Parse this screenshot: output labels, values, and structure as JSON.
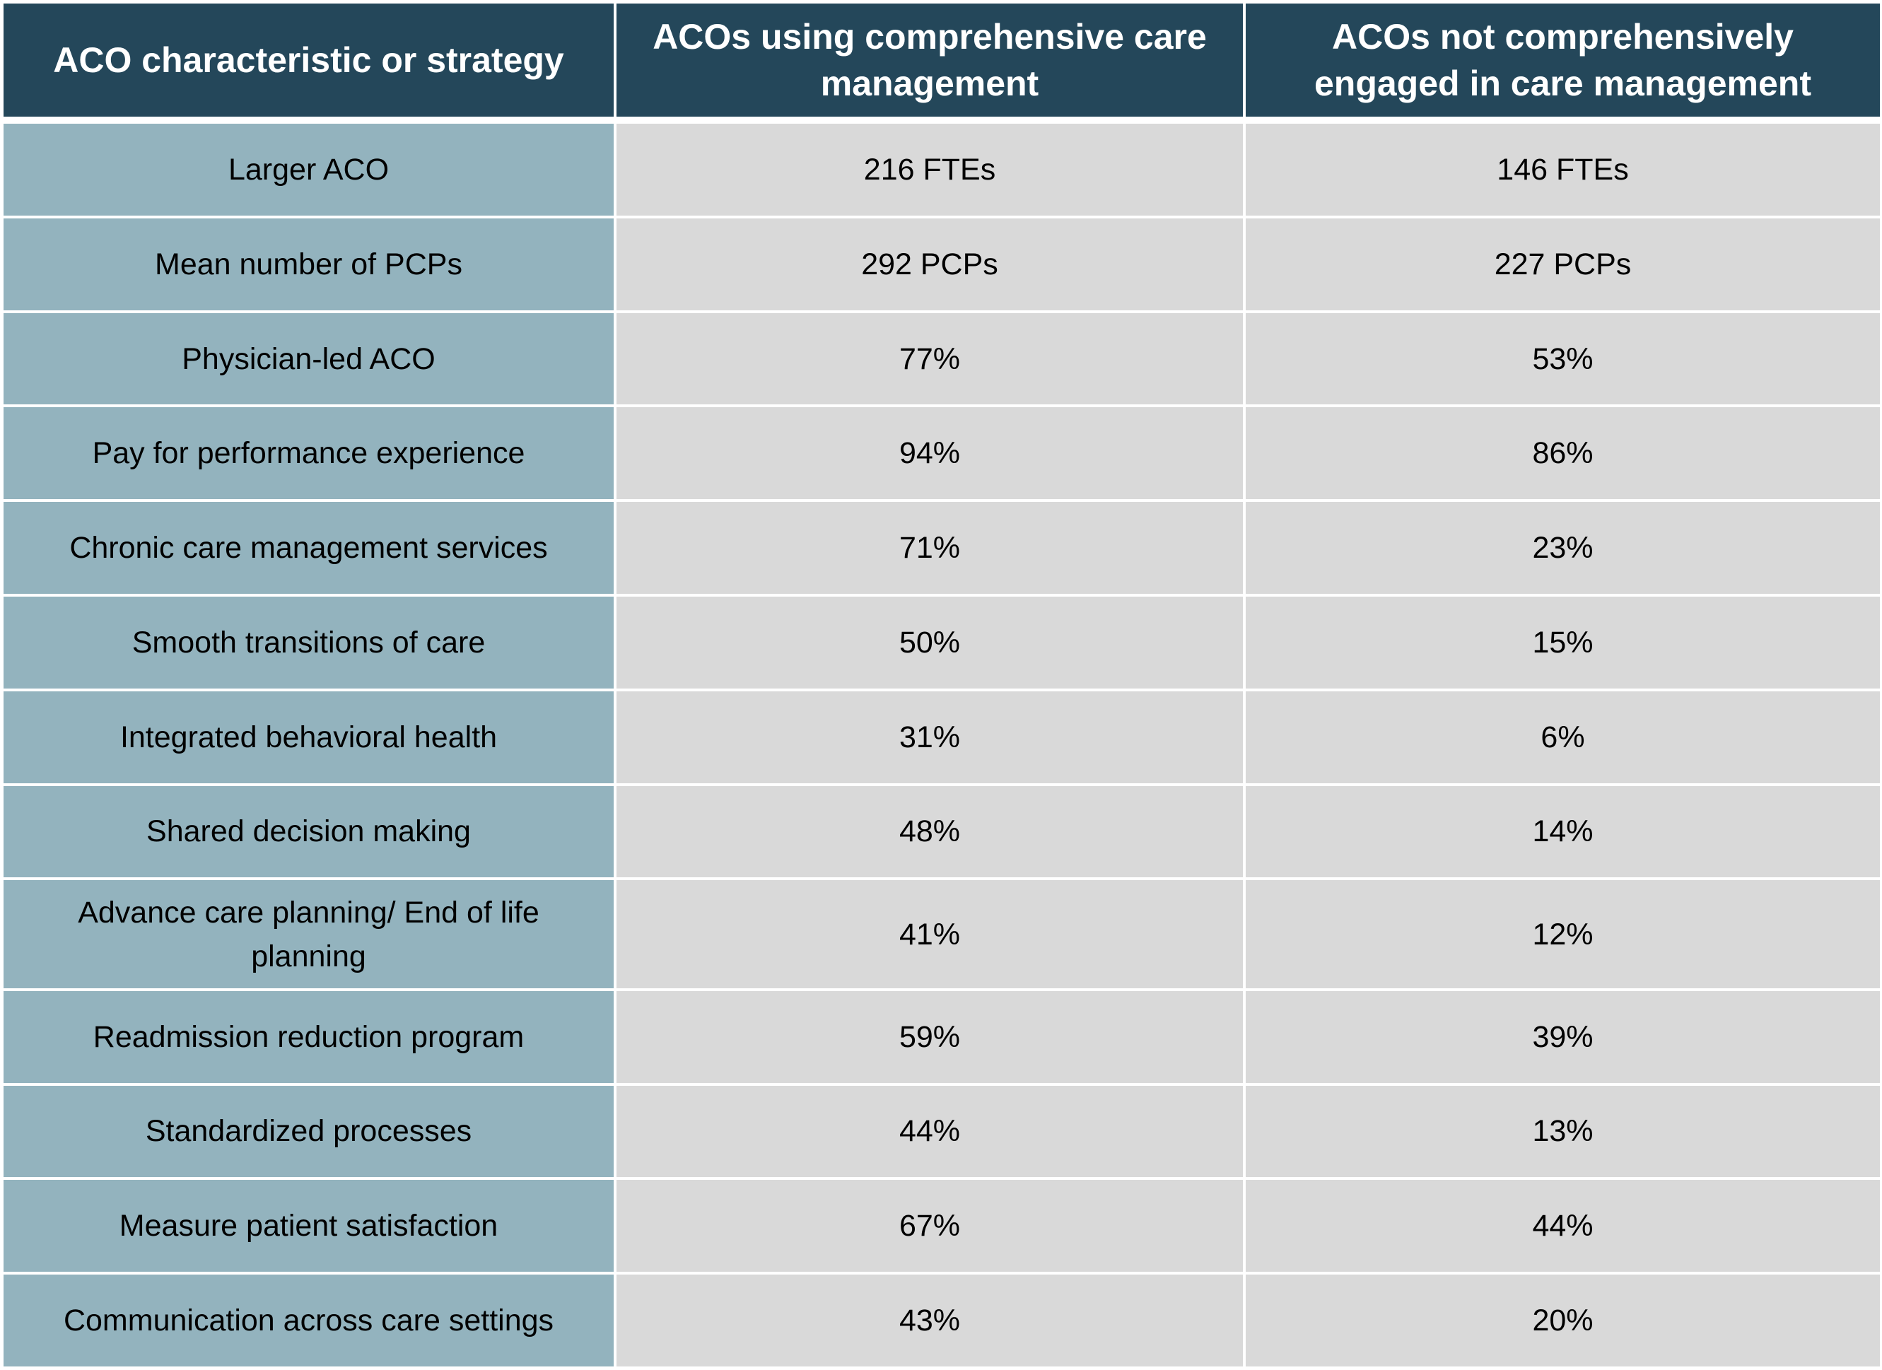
{
  "table": {
    "headers": [
      "ACO characteristic or strategy",
      "ACOs using comprehensive care management",
      "ACOs not comprehensively engaged in care management"
    ],
    "rows": [
      {
        "label": "Larger ACO",
        "comprehensive": "216 FTEs",
        "not_comprehensive": "146 FTEs"
      },
      {
        "label": "Mean number of PCPs",
        "comprehensive": "292 PCPs",
        "not_comprehensive": "227 PCPs"
      },
      {
        "label": "Physician-led ACO",
        "comprehensive": "77%",
        "not_comprehensive": "53%"
      },
      {
        "label": "Pay for performance experience",
        "comprehensive": "94%",
        "not_comprehensive": "86%"
      },
      {
        "label": "Chronic care management services",
        "comprehensive": "71%",
        "not_comprehensive": "23%"
      },
      {
        "label": "Smooth transitions of care",
        "comprehensive": "50%",
        "not_comprehensive": "15%"
      },
      {
        "label": "Integrated behavioral health",
        "comprehensive": "31%",
        "not_comprehensive": "6%"
      },
      {
        "label": "Shared decision making",
        "comprehensive": "48%",
        "not_comprehensive": "14%"
      },
      {
        "label": "Advance care planning/ End of life planning",
        "comprehensive": "41%",
        "not_comprehensive": "12%"
      },
      {
        "label": "Readmission reduction program",
        "comprehensive": "59%",
        "not_comprehensive": "39%"
      },
      {
        "label": "Standardized processes",
        "comprehensive": "44%",
        "not_comprehensive": "13%"
      },
      {
        "label": "Measure patient satisfaction",
        "comprehensive": "67%",
        "not_comprehensive": "44%"
      },
      {
        "label": "Communication across care settings",
        "comprehensive": "43%",
        "not_comprehensive": "20%"
      }
    ]
  },
  "colors": {
    "header_bg": "#24475a",
    "header_text": "#ffffff",
    "label_bg": "#93b3be",
    "value_bg": "#d9d9d9",
    "gridline": "#ffffff"
  }
}
